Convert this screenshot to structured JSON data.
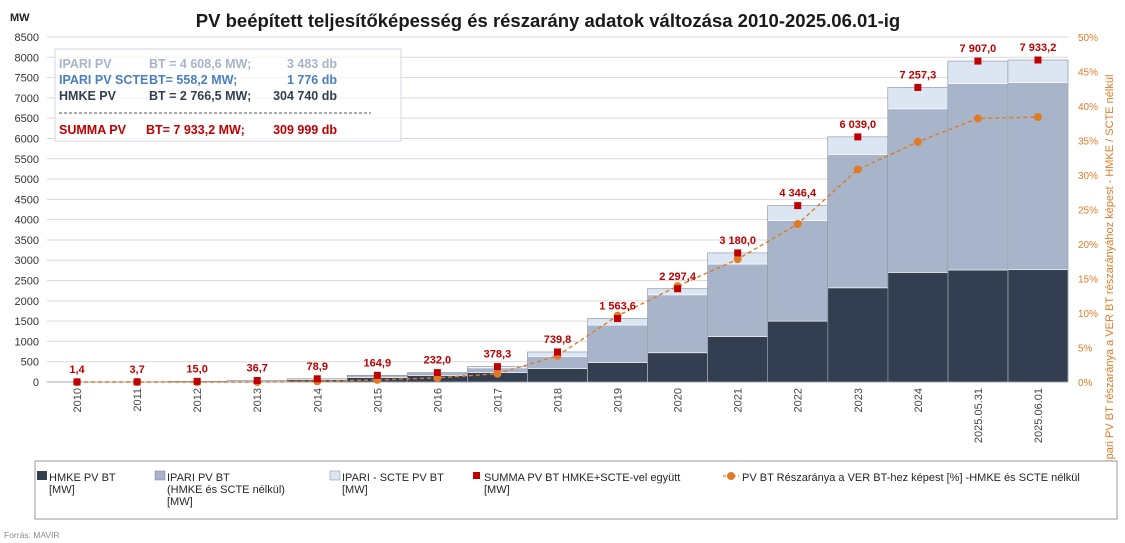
{
  "chart_data": {
    "type": "bar",
    "title": "PV beépített teljesítőképesség és részarány adatok változása 2010-2025.06.01-ig",
    "ylabel": "MW",
    "y2label": "Ipari PV BT részaránya a VER BT részarányához képest - HMKE / SCTE nélkül",
    "ylim": [
      0,
      8500
    ],
    "yticks": [
      0,
      500,
      1000,
      1500,
      2000,
      2500,
      3000,
      3500,
      4000,
      4500,
      5000,
      5500,
      6000,
      6500,
      7000,
      7500,
      8000,
      8500
    ],
    "y2lim": [
      0,
      50
    ],
    "y2ticks": [
      "0%",
      "5%",
      "10%",
      "15%",
      "20%",
      "25%",
      "30%",
      "35%",
      "40%",
      "45%",
      "50%"
    ],
    "categories": [
      "2010",
      "2011",
      "2012",
      "2013",
      "2014",
      "2015",
      "2016",
      "2017",
      "2018",
      "2019",
      "2020",
      "2021",
      "2022",
      "2023",
      "2024",
      "2025.05.31",
      "2025.06.01"
    ],
    "series": [
      {
        "name": "HMKE PV BT [MW]",
        "color": "#333f50",
        "values": [
          1.4,
          3.7,
          12,
          28,
          55,
          110,
          155,
          230,
          330,
          480,
          720,
          1120,
          1500,
          2320,
          2700,
          2760,
          2766.5
        ]
      },
      {
        "name": "IPARI PV BT (HMKE és SCTE nélkül) [MW]",
        "color": "#a7b4c9",
        "values": [
          0,
          0,
          3,
          8.7,
          23.9,
          54.9,
          77,
          118.3,
          299.8,
          923.6,
          1427.4,
          1785,
          2476.4,
          3280,
          4030,
          4590,
          4608.6
        ]
      },
      {
        "name": "IPARI - SCTE PV BT [MW]",
        "color": "#dce6f2",
        "values": [
          0,
          0,
          0,
          0,
          0,
          0,
          0,
          30,
          110,
          160,
          150,
          275,
          370,
          439,
          527.3,
          557,
          558.2
        ]
      }
    ],
    "summa": {
      "name": "SUMMA PV BT HMKE+SCTE-vel együtt [MW]",
      "color": "#c00000",
      "values": [
        1.4,
        3.7,
        15.0,
        36.7,
        78.9,
        164.9,
        232.0,
        378.3,
        739.8,
        1563.6,
        2297.4,
        3180.0,
        4346.4,
        6039.0,
        7257.3,
        7907.0,
        7933.2
      ],
      "labels": [
        "1,4",
        "3,7",
        "15,0",
        "36,7",
        "78,9",
        "164,9",
        "232,0",
        "378,3",
        "739,8",
        "1 563,6",
        "2 297,4",
        "3 180,0",
        "4 346,4",
        "6 039,0",
        "7 257,3",
        "7 907,0",
        "7 933,2"
      ]
    },
    "share": {
      "name": "PV BT Részaránya a VER BT-hez képest [%] -HMKE és SCTE nélkül",
      "color": "#e07b24",
      "values_percent": [
        0,
        0,
        0,
        0,
        0.1,
        0.3,
        0.6,
        1.2,
        3.8,
        9.6,
        13.9,
        17.8,
        22.9,
        30.8,
        34.8,
        38.2,
        38.4
      ]
    },
    "info_box": {
      "rows": [
        {
          "label": "IPARI PV",
          "bt": "BT  =  4 608,6 MW;",
          "db": "3 483 db",
          "color": "#a7b4c9"
        },
        {
          "label": "IPARI PV SCTE",
          "bt": "BT=      558,2 MW;",
          "db": "1 776 db",
          "color": "#4a7fbf"
        },
        {
          "label": "HMKE PV",
          "bt": "BT  =  2 766,5 MW;",
          "db": "304 740 db",
          "color": "#333f50"
        }
      ],
      "summa": {
        "label": "SUMMA PV",
        "bt": "BT=    7 933,2 MW;",
        "db": "309 999 db",
        "color": "#c00000"
      }
    },
    "legend": [
      {
        "line1": "HMKE PV BT",
        "line2": "[MW]",
        "line3": ""
      },
      {
        "line1": "IPARI PV BT",
        "line2": "(HMKE és SCTE  nélkül)",
        "line3": "[MW]"
      },
      {
        "line1": "IPARI - SCTE  PV BT",
        "line2": "[MW]",
        "line3": ""
      },
      {
        "line1": "SUMMA PV BT HMKE+SCTE-vel együtt",
        "line2": "[MW]",
        "line3": ""
      },
      {
        "line1": "PV BT Részaránya a VER BT-hez képest [%] -HMKE és SCTE nélkül",
        "line2": "",
        "line3": ""
      }
    ],
    "source": "Forrás: MAVIR"
  }
}
